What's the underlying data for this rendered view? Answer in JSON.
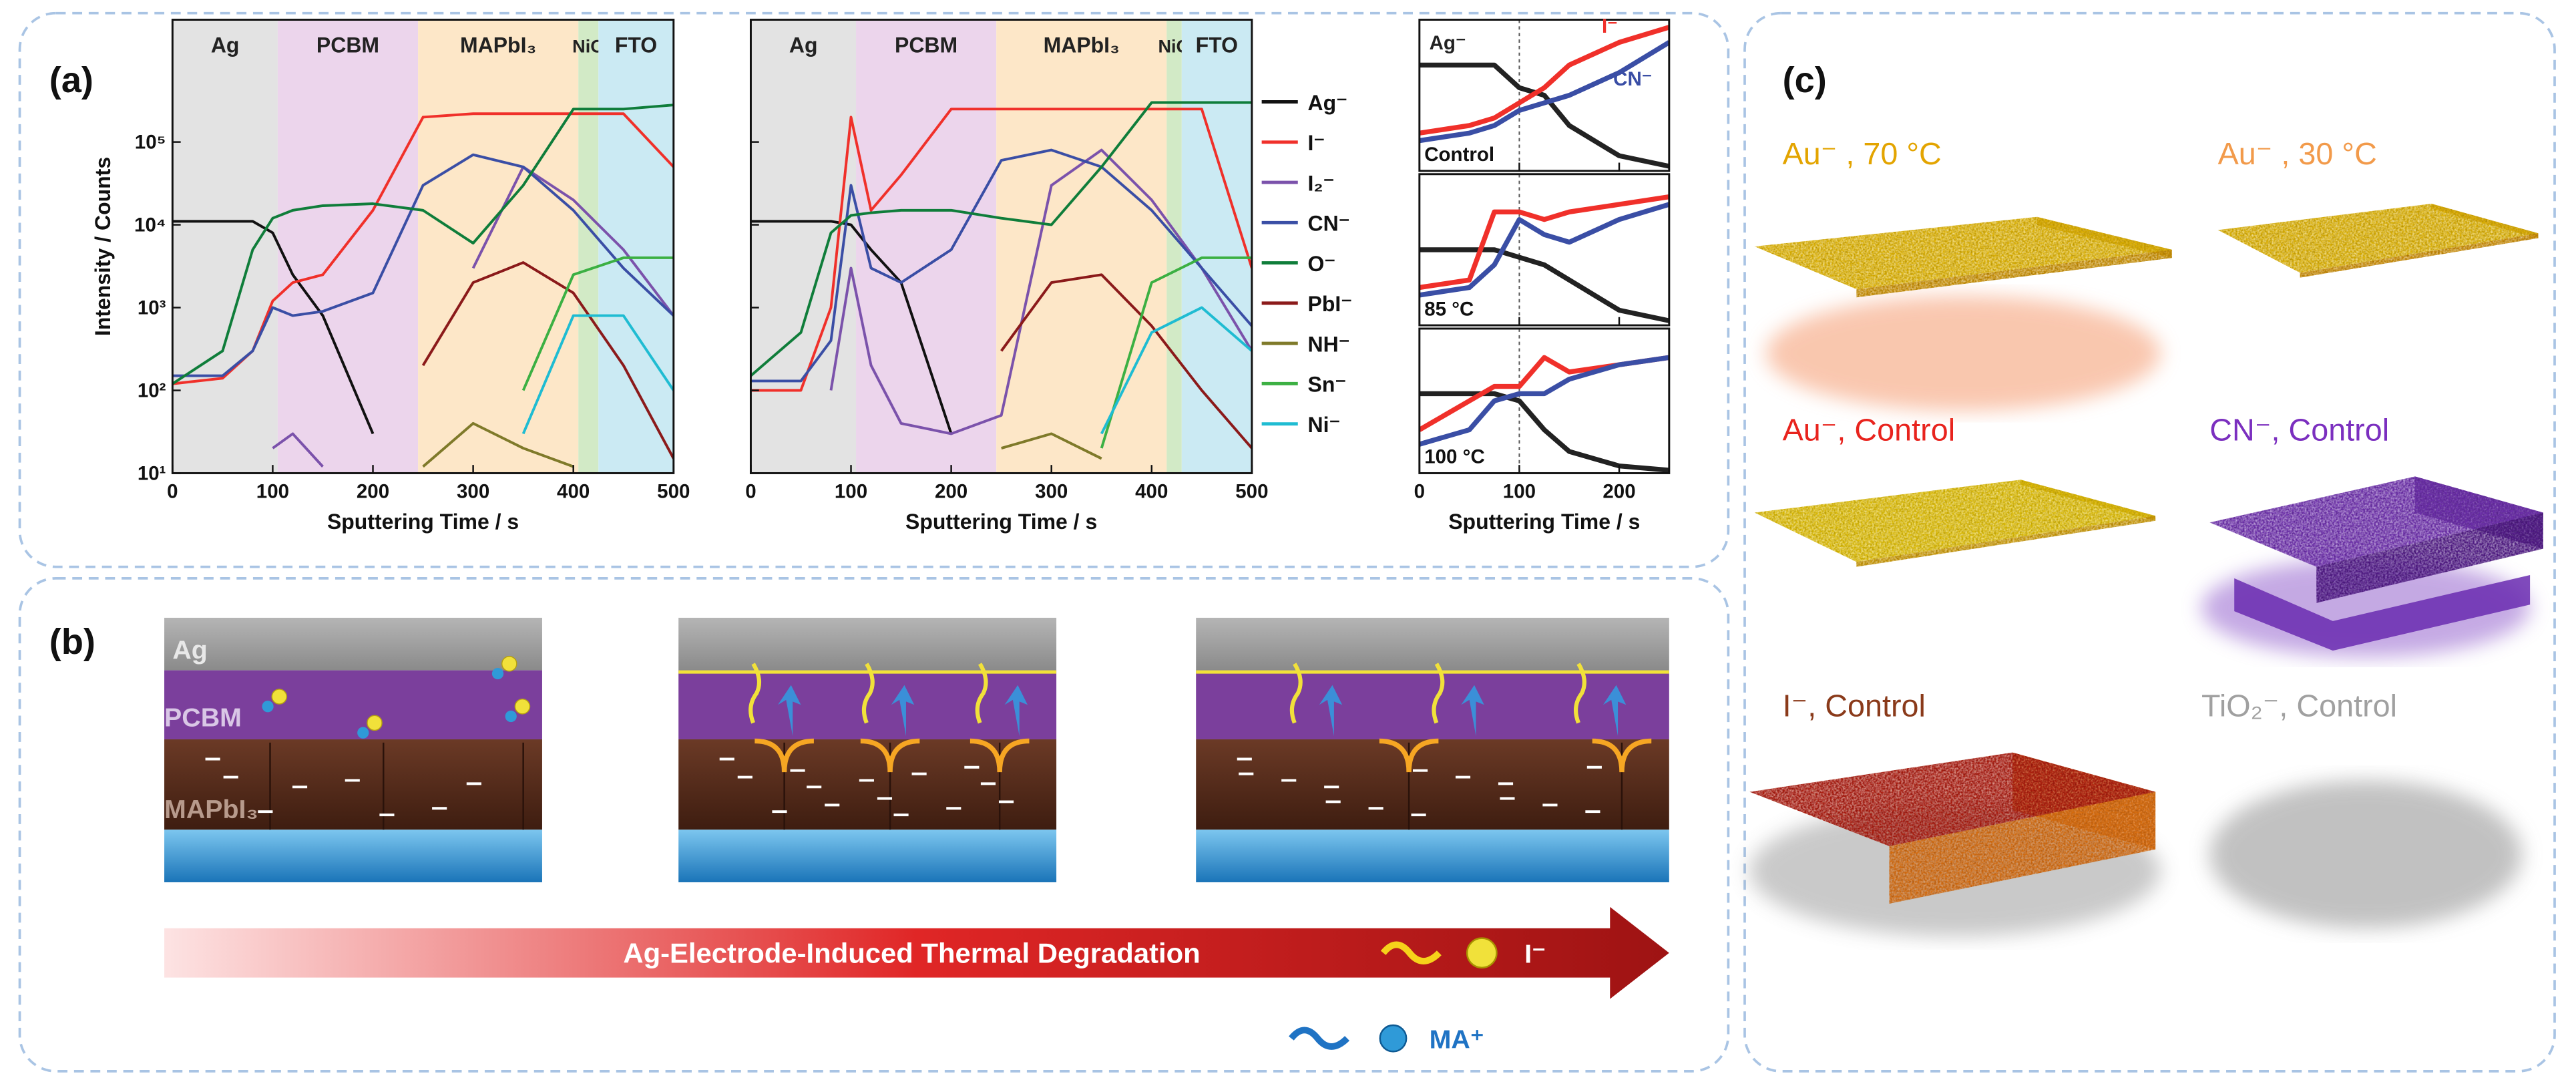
{
  "panel_labels": [
    "(a)",
    "(b)",
    "(c)"
  ],
  "chart_data": [
    {
      "type": "line",
      "xlabel": "Sputtering Time / s",
      "ylabel": "Intensity / Counts",
      "log_y": true,
      "xlim": [
        0,
        500
      ],
      "ylim": [
        10,
        3000000
      ],
      "xticks": [
        0,
        100,
        200,
        300,
        400,
        500
      ],
      "yticks": [
        {
          "value": 10,
          "label": "10¹"
        },
        {
          "value": 100,
          "label": "10²"
        },
        {
          "value": 1000,
          "label": "10³"
        },
        {
          "value": 10000,
          "label": "10⁴"
        },
        {
          "value": 100000,
          "label": "10⁵"
        }
      ],
      "regions": [
        {
          "name": "Ag",
          "start": 0,
          "end": 105,
          "color": "#e3e3e3"
        },
        {
          "name": "PCBM",
          "start": 105,
          "end": 245,
          "color": "#ecd5ec"
        },
        {
          "name": "MAPbI₃",
          "start": 245,
          "end": 405,
          "color": "#fde7c8"
        },
        {
          "name": "NiO",
          "start": 405,
          "end": 425,
          "color": "#d2eac6"
        },
        {
          "name": "FTO",
          "start": 425,
          "end": 500,
          "color": "#cbeaf3"
        }
      ],
      "x": [
        0,
        50,
        80,
        100,
        120,
        150,
        200,
        250,
        300,
        350,
        400,
        450,
        500
      ],
      "series": [
        {
          "color": "#111111",
          "values": [
            11000,
            11000,
            11000,
            8000,
            2500,
            800,
            30,
            null,
            null,
            null,
            null,
            null,
            null
          ]
        },
        {
          "color": "#f0302a",
          "values": [
            120,
            140,
            300,
            1200,
            2000,
            2500,
            15000,
            200000,
            220000,
            220000,
            220000,
            220000,
            50000
          ]
        },
        {
          "color": "#7b52ab",
          "values": [
            null,
            null,
            null,
            20,
            30,
            12,
            null,
            null,
            3000,
            50000,
            20000,
            5000,
            800
          ]
        },
        {
          "color": "#3a4ea5",
          "values": [
            150,
            150,
            300,
            1000,
            800,
            900,
            1500,
            30000,
            70000,
            50000,
            15000,
            3000,
            800
          ]
        },
        {
          "color": "#0f7d3a",
          "values": [
            120,
            300,
            5000,
            12000,
            15000,
            17000,
            18000,
            15000,
            6000,
            30000,
            250000,
            250000,
            280000
          ]
        },
        {
          "color": "#8b1a1a",
          "values": [
            null,
            null,
            null,
            null,
            null,
            null,
            null,
            200,
            2000,
            3500,
            1500,
            200,
            15
          ]
        },
        {
          "color": "#7f7a2a",
          "values": [
            null,
            null,
            null,
            null,
            null,
            null,
            null,
            12,
            40,
            20,
            12,
            null,
            null
          ]
        },
        {
          "color": "#3cb043",
          "values": [
            null,
            null,
            null,
            null,
            null,
            null,
            null,
            null,
            null,
            100,
            2500,
            4000,
            4000
          ]
        },
        {
          "color": "#1fbcd2",
          "values": [
            null,
            null,
            null,
            null,
            null,
            null,
            null,
            null,
            null,
            30,
            800,
            800,
            100
          ]
        }
      ]
    },
    {
      "type": "line",
      "xlabel": "Sputtering Time / s",
      "log_y": true,
      "legend": true,
      "xlim": [
        0,
        500
      ],
      "ylim": [
        10,
        3000000
      ],
      "xticks": [
        0,
        100,
        200,
        300,
        400,
        500
      ],
      "yticks": [
        10,
        100,
        1000,
        10000,
        100000
      ],
      "regions": [
        {
          "name": "Ag",
          "start": 0,
          "end": 105,
          "color": "#e3e3e3"
        },
        {
          "name": "PCBM",
          "start": 105,
          "end": 245,
          "color": "#ecd5ec"
        },
        {
          "name": "MAPbI₃",
          "start": 245,
          "end": 415,
          "color": "#fde7c8"
        },
        {
          "name": "NiO",
          "start": 415,
          "end": 430,
          "color": "#d2eac6"
        },
        {
          "name": "FTO",
          "start": 430,
          "end": 500,
          "color": "#cbeaf3"
        }
      ],
      "x": [
        0,
        50,
        80,
        100,
        120,
        150,
        200,
        250,
        300,
        350,
        400,
        450,
        500
      ],
      "series": [
        {
          "name": "Ag⁻",
          "color": "#111111",
          "values": [
            11000,
            11000,
            11000,
            10000,
            5000,
            2000,
            30,
            null,
            null,
            null,
            null,
            null,
            null
          ]
        },
        {
          "name": "I⁻",
          "color": "#f0302a",
          "values": [
            100,
            100,
            1000,
            200000,
            15000,
            40000,
            250000,
            250000,
            250000,
            250000,
            250000,
            250000,
            3000
          ]
        },
        {
          "name": "I₂⁻",
          "color": "#7b52ab",
          "values": [
            null,
            null,
            100,
            3000,
            200,
            40,
            30,
            50,
            30000,
            80000,
            20000,
            3000,
            300
          ]
        },
        {
          "name": "CN⁻",
          "color": "#3a4ea5",
          "values": [
            130,
            130,
            400,
            30000,
            3000,
            2000,
            5000,
            60000,
            80000,
            50000,
            15000,
            3000,
            600
          ]
        },
        {
          "name": "O⁻",
          "color": "#0f7d3a",
          "values": [
            150,
            500,
            8000,
            13000,
            14000,
            15000,
            15000,
            12000,
            10000,
            50000,
            300000,
            300000,
            300000
          ]
        },
        {
          "name": "PbI⁻",
          "color": "#8b1a1a",
          "values": [
            null,
            null,
            null,
            null,
            null,
            null,
            null,
            300,
            2000,
            2500,
            600,
            100,
            20
          ]
        },
        {
          "name": "NH⁻",
          "color": "#7f7a2a",
          "values": [
            null,
            null,
            null,
            null,
            null,
            null,
            null,
            20,
            30,
            15,
            null,
            null,
            null
          ]
        },
        {
          "name": "Sn⁻",
          "color": "#3cb043",
          "values": [
            null,
            null,
            null,
            null,
            null,
            null,
            null,
            null,
            null,
            20,
            2000,
            4000,
            4000
          ]
        },
        {
          "name": "Ni⁻",
          "color": "#1fbcd2",
          "values": [
            null,
            null,
            null,
            null,
            null,
            null,
            null,
            null,
            null,
            30,
            500,
            1000,
            300
          ]
        }
      ]
    },
    {
      "type": "line",
      "label": "Control",
      "annotations": [
        "Ag⁻",
        "I⁻",
        "CN⁻"
      ],
      "xlim": [
        0,
        250
      ],
      "ylim": [
        0,
        1
      ],
      "xticks": [
        0,
        100,
        200
      ],
      "vline": 100,
      "x": [
        0,
        50,
        75,
        100,
        125,
        150,
        200,
        250
      ],
      "series": [
        {
          "color": "#222222",
          "values": [
            0.7,
            0.7,
            0.7,
            0.55,
            0.5,
            0.3,
            0.1,
            0.03
          ]
        },
        {
          "color": "#f0302a",
          "values": [
            0.25,
            0.3,
            0.35,
            0.45,
            0.55,
            0.7,
            0.85,
            0.95
          ]
        },
        {
          "color": "#3a4ea5",
          "values": [
            0.2,
            0.25,
            0.3,
            0.4,
            0.45,
            0.5,
            0.65,
            0.85
          ]
        }
      ]
    },
    {
      "type": "line",
      "label": "85 °C",
      "xlim": [
        0,
        250
      ],
      "ylim": [
        0,
        1
      ],
      "xticks": [
        0,
        100,
        200
      ],
      "vline": 100,
      "x": [
        0,
        50,
        75,
        100,
        125,
        150,
        200,
        250
      ],
      "series": [
        {
          "color": "#222222",
          "values": [
            0.5,
            0.5,
            0.5,
            0.45,
            0.4,
            0.3,
            0.1,
            0.03
          ]
        },
        {
          "color": "#f0302a",
          "values": [
            0.25,
            0.3,
            0.75,
            0.75,
            0.7,
            0.75,
            0.8,
            0.85
          ]
        },
        {
          "color": "#3a4ea5",
          "values": [
            0.2,
            0.25,
            0.4,
            0.7,
            0.6,
            0.55,
            0.7,
            0.8
          ]
        }
      ]
    },
    {
      "type": "line",
      "label": "100 °C",
      "xlabel": "Sputtering Time / s",
      "xlim": [
        0,
        250
      ],
      "ylim": [
        0,
        1
      ],
      "xticks": [
        0,
        100,
        200
      ],
      "vline": 100,
      "x": [
        0,
        50,
        75,
        100,
        125,
        150,
        200,
        250
      ],
      "series": [
        {
          "color": "#222222",
          "values": [
            0.55,
            0.55,
            0.55,
            0.5,
            0.3,
            0.15,
            0.05,
            0.02
          ]
        },
        {
          "color": "#f0302a",
          "values": [
            0.3,
            0.5,
            0.6,
            0.6,
            0.8,
            0.7,
            0.75,
            0.8
          ]
        },
        {
          "color": "#3a4ea5",
          "values": [
            0.2,
            0.3,
            0.5,
            0.55,
            0.55,
            0.65,
            0.75,
            0.8
          ]
        }
      ]
    }
  ],
  "diagram": {
    "layers": [
      "Ag",
      "PCBM",
      "MAPbI₃"
    ],
    "arrow_text": "Ag-Electrode-Induced Thermal Degradation",
    "legend": [
      "I⁻",
      "MA⁺"
    ]
  },
  "renders": [
    {
      "label": "Au⁻ , 70 °C",
      "color": "#e3a400"
    },
    {
      "label": "Au⁻ , 30 °C",
      "color": "#f29a4a"
    },
    {
      "label": "Au⁻, Control",
      "color": "#e8231d"
    },
    {
      "label": "CN⁻, Control",
      "color": "#7b2fbf"
    },
    {
      "label": "I⁻, Control",
      "color": "#8a3a1a"
    },
    {
      "label": "TiO₂⁻, Control",
      "color": "#a0a0a0"
    }
  ]
}
